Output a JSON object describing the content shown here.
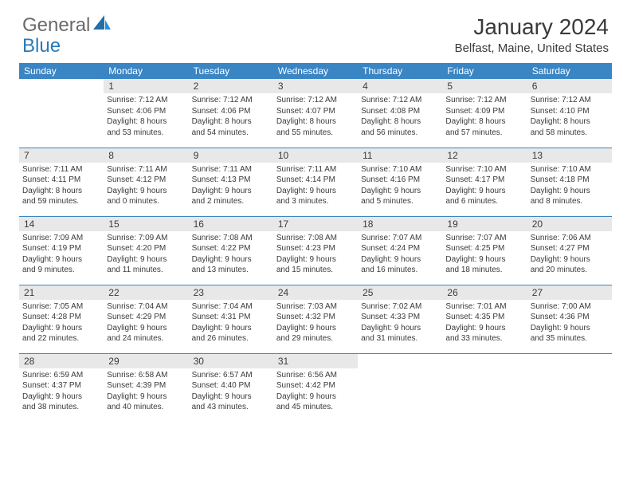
{
  "logo": {
    "text1": "General",
    "text2": "Blue"
  },
  "title": "January 2024",
  "location": "Belfast, Maine, United States",
  "colors": {
    "header_bg": "#3a85c4",
    "header_text": "#ffffff",
    "daynum_bg": "#e8e8e8",
    "border": "#3a85c4",
    "body_text": "#3a3a3a",
    "logo_accent": "#2a7ab8"
  },
  "weekdays": [
    "Sunday",
    "Monday",
    "Tuesday",
    "Wednesday",
    "Thursday",
    "Friday",
    "Saturday"
  ],
  "weeks": [
    [
      {
        "n": "",
        "lines": []
      },
      {
        "n": "1",
        "lines": [
          "Sunrise: 7:12 AM",
          "Sunset: 4:06 PM",
          "Daylight: 8 hours",
          "and 53 minutes."
        ]
      },
      {
        "n": "2",
        "lines": [
          "Sunrise: 7:12 AM",
          "Sunset: 4:06 PM",
          "Daylight: 8 hours",
          "and 54 minutes."
        ]
      },
      {
        "n": "3",
        "lines": [
          "Sunrise: 7:12 AM",
          "Sunset: 4:07 PM",
          "Daylight: 8 hours",
          "and 55 minutes."
        ]
      },
      {
        "n": "4",
        "lines": [
          "Sunrise: 7:12 AM",
          "Sunset: 4:08 PM",
          "Daylight: 8 hours",
          "and 56 minutes."
        ]
      },
      {
        "n": "5",
        "lines": [
          "Sunrise: 7:12 AM",
          "Sunset: 4:09 PM",
          "Daylight: 8 hours",
          "and 57 minutes."
        ]
      },
      {
        "n": "6",
        "lines": [
          "Sunrise: 7:12 AM",
          "Sunset: 4:10 PM",
          "Daylight: 8 hours",
          "and 58 minutes."
        ]
      }
    ],
    [
      {
        "n": "7",
        "lines": [
          "Sunrise: 7:11 AM",
          "Sunset: 4:11 PM",
          "Daylight: 8 hours",
          "and 59 minutes."
        ]
      },
      {
        "n": "8",
        "lines": [
          "Sunrise: 7:11 AM",
          "Sunset: 4:12 PM",
          "Daylight: 9 hours",
          "and 0 minutes."
        ]
      },
      {
        "n": "9",
        "lines": [
          "Sunrise: 7:11 AM",
          "Sunset: 4:13 PM",
          "Daylight: 9 hours",
          "and 2 minutes."
        ]
      },
      {
        "n": "10",
        "lines": [
          "Sunrise: 7:11 AM",
          "Sunset: 4:14 PM",
          "Daylight: 9 hours",
          "and 3 minutes."
        ]
      },
      {
        "n": "11",
        "lines": [
          "Sunrise: 7:10 AM",
          "Sunset: 4:16 PM",
          "Daylight: 9 hours",
          "and 5 minutes."
        ]
      },
      {
        "n": "12",
        "lines": [
          "Sunrise: 7:10 AM",
          "Sunset: 4:17 PM",
          "Daylight: 9 hours",
          "and 6 minutes."
        ]
      },
      {
        "n": "13",
        "lines": [
          "Sunrise: 7:10 AM",
          "Sunset: 4:18 PM",
          "Daylight: 9 hours",
          "and 8 minutes."
        ]
      }
    ],
    [
      {
        "n": "14",
        "lines": [
          "Sunrise: 7:09 AM",
          "Sunset: 4:19 PM",
          "Daylight: 9 hours",
          "and 9 minutes."
        ]
      },
      {
        "n": "15",
        "lines": [
          "Sunrise: 7:09 AM",
          "Sunset: 4:20 PM",
          "Daylight: 9 hours",
          "and 11 minutes."
        ]
      },
      {
        "n": "16",
        "lines": [
          "Sunrise: 7:08 AM",
          "Sunset: 4:22 PM",
          "Daylight: 9 hours",
          "and 13 minutes."
        ]
      },
      {
        "n": "17",
        "lines": [
          "Sunrise: 7:08 AM",
          "Sunset: 4:23 PM",
          "Daylight: 9 hours",
          "and 15 minutes."
        ]
      },
      {
        "n": "18",
        "lines": [
          "Sunrise: 7:07 AM",
          "Sunset: 4:24 PM",
          "Daylight: 9 hours",
          "and 16 minutes."
        ]
      },
      {
        "n": "19",
        "lines": [
          "Sunrise: 7:07 AM",
          "Sunset: 4:25 PM",
          "Daylight: 9 hours",
          "and 18 minutes."
        ]
      },
      {
        "n": "20",
        "lines": [
          "Sunrise: 7:06 AM",
          "Sunset: 4:27 PM",
          "Daylight: 9 hours",
          "and 20 minutes."
        ]
      }
    ],
    [
      {
        "n": "21",
        "lines": [
          "Sunrise: 7:05 AM",
          "Sunset: 4:28 PM",
          "Daylight: 9 hours",
          "and 22 minutes."
        ]
      },
      {
        "n": "22",
        "lines": [
          "Sunrise: 7:04 AM",
          "Sunset: 4:29 PM",
          "Daylight: 9 hours",
          "and 24 minutes."
        ]
      },
      {
        "n": "23",
        "lines": [
          "Sunrise: 7:04 AM",
          "Sunset: 4:31 PM",
          "Daylight: 9 hours",
          "and 26 minutes."
        ]
      },
      {
        "n": "24",
        "lines": [
          "Sunrise: 7:03 AM",
          "Sunset: 4:32 PM",
          "Daylight: 9 hours",
          "and 29 minutes."
        ]
      },
      {
        "n": "25",
        "lines": [
          "Sunrise: 7:02 AM",
          "Sunset: 4:33 PM",
          "Daylight: 9 hours",
          "and 31 minutes."
        ]
      },
      {
        "n": "26",
        "lines": [
          "Sunrise: 7:01 AM",
          "Sunset: 4:35 PM",
          "Daylight: 9 hours",
          "and 33 minutes."
        ]
      },
      {
        "n": "27",
        "lines": [
          "Sunrise: 7:00 AM",
          "Sunset: 4:36 PM",
          "Daylight: 9 hours",
          "and 35 minutes."
        ]
      }
    ],
    [
      {
        "n": "28",
        "lines": [
          "Sunrise: 6:59 AM",
          "Sunset: 4:37 PM",
          "Daylight: 9 hours",
          "and 38 minutes."
        ]
      },
      {
        "n": "29",
        "lines": [
          "Sunrise: 6:58 AM",
          "Sunset: 4:39 PM",
          "Daylight: 9 hours",
          "and 40 minutes."
        ]
      },
      {
        "n": "30",
        "lines": [
          "Sunrise: 6:57 AM",
          "Sunset: 4:40 PM",
          "Daylight: 9 hours",
          "and 43 minutes."
        ]
      },
      {
        "n": "31",
        "lines": [
          "Sunrise: 6:56 AM",
          "Sunset: 4:42 PM",
          "Daylight: 9 hours",
          "and 45 minutes."
        ]
      },
      {
        "n": "",
        "lines": []
      },
      {
        "n": "",
        "lines": []
      },
      {
        "n": "",
        "lines": []
      }
    ]
  ]
}
